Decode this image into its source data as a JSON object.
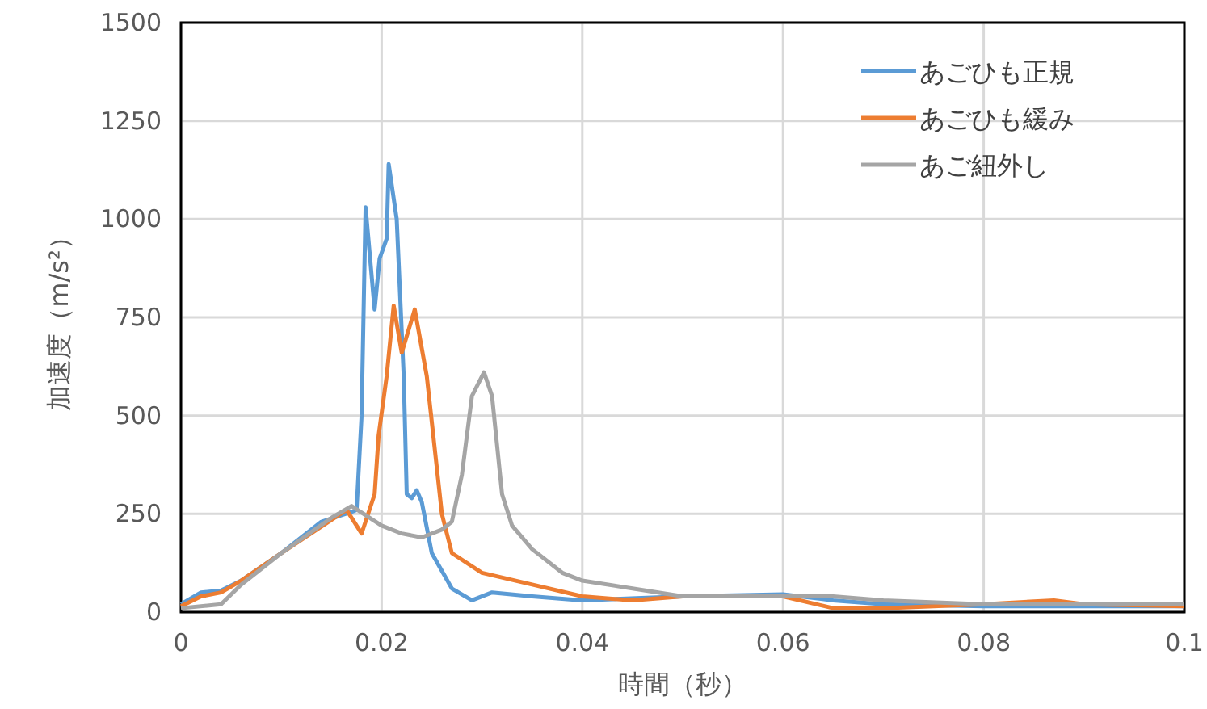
{
  "chart_data": {
    "type": "line",
    "xlabel": "時間（秒）",
    "ylabel": "加速度（m/s²）",
    "xlim": [
      0,
      0.1
    ],
    "xticks": [
      0,
      0.02,
      0.04,
      0.06,
      0.08,
      0.1
    ],
    "ylim": [
      0,
      1500
    ],
    "yticks": [
      0,
      250,
      500,
      750,
      1000,
      1250,
      1500
    ],
    "grid": true,
    "legend": "top right",
    "marker": "none",
    "line_style": "solid",
    "series": [
      {
        "name": "あごひも正規",
        "color": "#5b9bd5",
        "x": [
          0,
          0.002,
          0.004,
          0.006,
          0.01,
          0.014,
          0.017,
          0.0175,
          0.018,
          0.0184,
          0.0193,
          0.0198,
          0.0205,
          0.0207,
          0.0215,
          0.0222,
          0.0225,
          0.023,
          0.0235,
          0.024,
          0.025,
          0.027,
          0.029,
          0.031,
          0.035,
          0.04,
          0.05,
          0.06,
          0.065,
          0.07,
          0.08,
          0.09,
          0.1
        ],
        "values": [
          20,
          50,
          55,
          80,
          150,
          230,
          255,
          260,
          500,
          1030,
          770,
          900,
          950,
          1140,
          1000,
          600,
          300,
          290,
          310,
          280,
          150,
          60,
          30,
          50,
          40,
          30,
          40,
          45,
          30,
          20,
          15,
          15,
          15
        ]
      },
      {
        "name": "あごひも緩み",
        "color": "#ed7d31",
        "x": [
          0,
          0.002,
          0.004,
          0.006,
          0.01,
          0.0165,
          0.0175,
          0.018,
          0.0193,
          0.0197,
          0.0205,
          0.0212,
          0.022,
          0.0233,
          0.0245,
          0.026,
          0.027,
          0.03,
          0.035,
          0.04,
          0.045,
          0.05,
          0.06,
          0.065,
          0.07,
          0.08,
          0.087,
          0.09,
          0.1
        ],
        "values": [
          15,
          40,
          50,
          80,
          150,
          260,
          220,
          200,
          300,
          450,
          600,
          780,
          660,
          770,
          600,
          250,
          150,
          100,
          70,
          40,
          30,
          40,
          40,
          10,
          10,
          20,
          30,
          20,
          15
        ]
      },
      {
        "name": "あご紐外し",
        "color": "#a5a5a5",
        "x": [
          0,
          0.004,
          0.006,
          0.01,
          0.015,
          0.017,
          0.02,
          0.022,
          0.024,
          0.026,
          0.027,
          0.028,
          0.029,
          0.0302,
          0.031,
          0.032,
          0.033,
          0.035,
          0.038,
          0.04,
          0.045,
          0.05,
          0.06,
          0.065,
          0.07,
          0.08,
          0.09,
          0.1
        ],
        "values": [
          10,
          20,
          70,
          150,
          240,
          270,
          220,
          200,
          190,
          210,
          230,
          350,
          550,
          610,
          550,
          300,
          220,
          160,
          100,
          80,
          60,
          40,
          40,
          40,
          30,
          20,
          20,
          20
        ]
      }
    ]
  }
}
